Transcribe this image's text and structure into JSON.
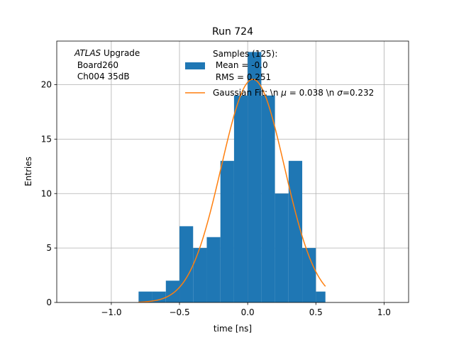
{
  "chart_data": {
    "type": "bar",
    "title": "Run 724",
    "xlabel": "time [ns]",
    "ylabel": "Entries",
    "xlim": [
      -1.4,
      1.18
    ],
    "ylim": [
      0,
      24
    ],
    "grid": true,
    "x_ticks": [
      -1.0,
      -0.5,
      0.0,
      0.5,
      1.0
    ],
    "x_tick_labels": [
      "−1.0",
      "−0.5",
      "0.0",
      "0.5",
      "1.0"
    ],
    "y_ticks": [
      0,
      5,
      10,
      15,
      20
    ],
    "y_tick_labels": [
      "0",
      "5",
      "10",
      "15",
      "20"
    ],
    "bar_color": "#1f77b4",
    "fit_color": "#ff7f0e",
    "bins": [
      {
        "left": -0.8,
        "right": -0.7,
        "value": 1
      },
      {
        "left": -0.7,
        "right": -0.6,
        "value": 1
      },
      {
        "left": -0.6,
        "right": -0.5,
        "value": 2
      },
      {
        "left": -0.5,
        "right": -0.4,
        "value": 7
      },
      {
        "left": -0.4,
        "right": -0.3,
        "value": 5
      },
      {
        "left": -0.3,
        "right": -0.2,
        "value": 6
      },
      {
        "left": -0.2,
        "right": -0.1,
        "value": 13
      },
      {
        "left": -0.1,
        "right": 0.0,
        "value": 19
      },
      {
        "left": 0.0,
        "right": 0.1,
        "value": 23
      },
      {
        "left": 0.1,
        "right": 0.2,
        "value": 19
      },
      {
        "left": 0.2,
        "right": 0.3,
        "value": 10
      },
      {
        "left": 0.3,
        "right": 0.4,
        "value": 13
      },
      {
        "left": 0.4,
        "right": 0.5,
        "value": 5
      },
      {
        "left": 0.5,
        "right": 0.57,
        "value": 1
      }
    ],
    "fit": {
      "amplitude": 20.5,
      "mu": 0.038,
      "sigma": 0.232,
      "x_range": [
        -0.8,
        0.57
      ]
    },
    "annotation": {
      "atlas": "ATLAS",
      "line1_rest": " Upgrade",
      "line2": " Board260",
      "line3": " Ch004 35dB"
    },
    "legend": {
      "position": "top-center",
      "histogram_entry": [
        "Samples (125):",
        " Mean = -0.0",
        " RMS = 0.251"
      ],
      "fit_entry_prefix": "Gaussian Fit: \\n ",
      "fit_entry_mu_symbol": "μ",
      "fit_entry_mid": " = 0.038 \\n ",
      "fit_entry_sigma_symbol": "σ",
      "fit_entry_suffix": "=0.232"
    }
  }
}
